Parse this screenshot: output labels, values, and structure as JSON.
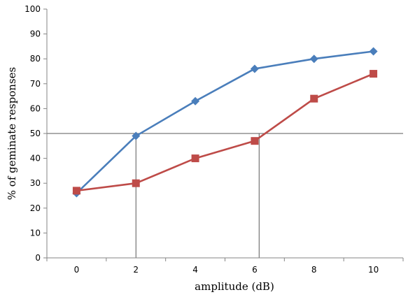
{
  "chart_data": {
    "type": "line",
    "xlabel": "amplitude (dB)",
    "ylabel": "% of geminate responses",
    "xlim": [
      -1,
      11
    ],
    "ylim": [
      0,
      100
    ],
    "x_ticks": [
      "0",
      "2",
      "4",
      "6",
      "8",
      "10"
    ],
    "y_ticks": [
      "0",
      "10",
      "20",
      "30",
      "40",
      "50",
      "60",
      "70",
      "80",
      "90",
      "100"
    ],
    "legend": "none",
    "grid": false,
    "x": [
      0,
      2,
      4,
      6,
      8,
      10
    ],
    "series": [
      {
        "values": [
          26,
          49,
          63,
          76,
          80,
          83
        ],
        "color": "#4a7ebb",
        "marker": "diamond"
      },
      {
        "values": [
          27,
          30,
          40,
          47,
          64,
          74
        ],
        "color": "#be4b48",
        "marker": "square"
      }
    ],
    "reference_lines": {
      "horizontal_y": 50,
      "vertical_x": [
        2,
        6.15
      ],
      "color": "#595959"
    }
  }
}
